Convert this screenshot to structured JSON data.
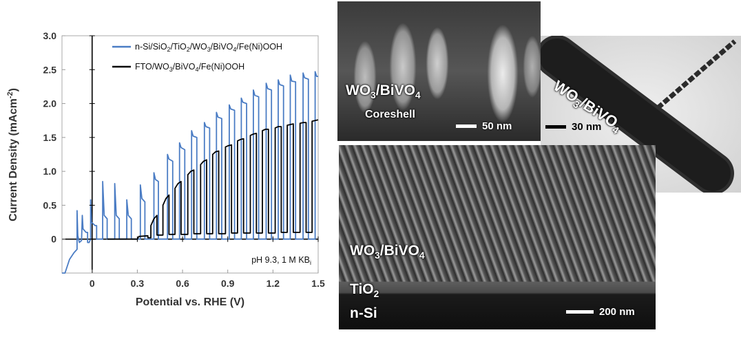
{
  "chart_data": {
    "type": "line",
    "xlabel": "Potential vs. RHE (V)",
    "ylabel_main": "Current Density (mAcm",
    "ylabel_sup": "-2",
    "ylabel_close": ")",
    "xlim": [
      -0.2,
      1.5
    ],
    "ylim": [
      -0.5,
      3.0
    ],
    "x_ticks": [
      {
        "v": 0,
        "label": "0"
      },
      {
        "v": 0.3,
        "label": "0.3"
      },
      {
        "v": 0.6,
        "label": "0.6"
      },
      {
        "v": 0.9,
        "label": "0.9"
      },
      {
        "v": 1.2,
        "label": "1.2"
      },
      {
        "v": 1.5,
        "label": "1.5"
      }
    ],
    "y_ticks": [
      {
        "v": 0,
        "label": "0"
      },
      {
        "v": 0.5,
        "label": "0.5"
      },
      {
        "v": 1.0,
        "label": "1.0"
      },
      {
        "v": 1.5,
        "label": "1.5"
      },
      {
        "v": 2.0,
        "label": "2.0"
      },
      {
        "v": 2.5,
        "label": "2.5"
      },
      {
        "v": 3.0,
        "label": "3.0"
      }
    ],
    "legend": [
      {
        "parts": [
          [
            "n-Si/SiO",
            ""
          ],
          [
            "2",
            "sub"
          ],
          [
            "/TiO",
            ""
          ],
          [
            "2",
            "sub"
          ],
          [
            "/WO",
            ""
          ],
          [
            "3",
            "sub"
          ],
          [
            "/BiVO",
            ""
          ],
          [
            "4",
            "sub"
          ],
          [
            "/Fe(Ni)OOH",
            ""
          ]
        ],
        "color": "#4a7cc4"
      },
      {
        "parts": [
          [
            "FTO/WO",
            ""
          ],
          [
            "3",
            "sub"
          ],
          [
            "/BiVO",
            ""
          ],
          [
            "4",
            "sub"
          ],
          [
            "/Fe(Ni)OOH",
            ""
          ]
        ],
        "color": "#000000"
      }
    ],
    "annotation": {
      "parts": [
        [
          "pH 9.3, 1 M KB",
          ""
        ],
        [
          "i",
          "sub"
        ]
      ]
    },
    "series": [
      {
        "color": "#4a7cc4",
        "points": [
          [
            -0.2,
            -0.55
          ],
          [
            -0.18,
            -0.5
          ],
          [
            -0.15,
            -0.3
          ],
          [
            -0.12,
            -0.2
          ],
          [
            -0.1,
            -0.15
          ],
          [
            -0.1,
            0.42
          ],
          [
            -0.095,
            0.05
          ],
          [
            -0.085,
            -0.05
          ],
          [
            -0.07,
            -0.02
          ],
          [
            -0.065,
            0.35
          ],
          [
            -0.06,
            0.15
          ],
          [
            -0.04,
            0.1
          ],
          [
            -0.03,
            0.1
          ],
          [
            -0.03,
            -0.05
          ],
          [
            -0.02,
            -0.05
          ],
          [
            -0.01,
            0.0
          ],
          [
            -0.01,
            0.58
          ],
          [
            -0.005,
            0.25
          ],
          [
            0.02,
            0.2
          ],
          [
            0.03,
            0.2
          ],
          [
            0.03,
            0.0
          ],
          [
            0.07,
            0.0
          ],
          [
            0.07,
            0.85
          ],
          [
            0.08,
            0.35
          ],
          [
            0.1,
            0.3
          ],
          [
            0.1,
            0.0
          ],
          [
            0.15,
            0.0
          ],
          [
            0.15,
            0.82
          ],
          [
            0.16,
            0.35
          ],
          [
            0.18,
            0.3
          ],
          [
            0.18,
            0.0
          ],
          [
            0.23,
            0.0
          ],
          [
            0.23,
            0.58
          ],
          [
            0.24,
            0.35
          ],
          [
            0.26,
            0.3
          ],
          [
            0.26,
            0.0
          ],
          [
            0.32,
            0.0
          ],
          [
            0.32,
            0.8
          ],
          [
            0.33,
            0.6
          ],
          [
            0.35,
            0.55
          ],
          [
            0.35,
            0.0
          ],
          [
            0.41,
            0.0
          ],
          [
            0.41,
            0.98
          ],
          [
            0.42,
            0.88
          ],
          [
            0.44,
            0.85
          ],
          [
            0.44,
            0.0
          ],
          [
            0.5,
            0.0
          ],
          [
            0.5,
            1.25
          ],
          [
            0.51,
            1.18
          ],
          [
            0.535,
            1.15
          ],
          [
            0.535,
            0.0
          ],
          [
            0.58,
            0.0
          ],
          [
            0.58,
            1.42
          ],
          [
            0.59,
            1.35
          ],
          [
            0.615,
            1.32
          ],
          [
            0.615,
            0.0
          ],
          [
            0.66,
            0.0
          ],
          [
            0.66,
            1.6
          ],
          [
            0.67,
            1.52
          ],
          [
            0.695,
            1.5
          ],
          [
            0.695,
            0.0
          ],
          [
            0.745,
            0.0
          ],
          [
            0.745,
            1.72
          ],
          [
            0.755,
            1.66
          ],
          [
            0.78,
            1.64
          ],
          [
            0.78,
            0.0
          ],
          [
            0.825,
            0.0
          ],
          [
            0.825,
            1.87
          ],
          [
            0.835,
            1.8
          ],
          [
            0.86,
            1.78
          ],
          [
            0.86,
            0.0
          ],
          [
            0.91,
            0.0
          ],
          [
            0.91,
            1.98
          ],
          [
            0.92,
            1.92
          ],
          [
            0.945,
            1.9
          ],
          [
            0.945,
            0.0
          ],
          [
            0.99,
            0.0
          ],
          [
            0.99,
            2.08
          ],
          [
            1.0,
            2.02
          ],
          [
            1.025,
            2.0
          ],
          [
            1.025,
            0.0
          ],
          [
            1.07,
            0.0
          ],
          [
            1.07,
            2.2
          ],
          [
            1.08,
            2.12
          ],
          [
            1.105,
            2.1
          ],
          [
            1.105,
            0.0
          ],
          [
            1.155,
            0.0
          ],
          [
            1.155,
            2.3
          ],
          [
            1.165,
            2.22
          ],
          [
            1.19,
            2.2
          ],
          [
            1.19,
            0.0
          ],
          [
            1.235,
            0.0
          ],
          [
            1.235,
            2.35
          ],
          [
            1.245,
            2.28
          ],
          [
            1.27,
            2.26
          ],
          [
            1.27,
            0.0
          ],
          [
            1.315,
            0.0
          ],
          [
            1.315,
            2.42
          ],
          [
            1.325,
            2.33
          ],
          [
            1.35,
            2.32
          ],
          [
            1.35,
            0.0
          ],
          [
            1.4,
            0.0
          ],
          [
            1.4,
            2.45
          ],
          [
            1.41,
            2.38
          ],
          [
            1.435,
            2.36
          ],
          [
            1.435,
            0.0
          ],
          [
            1.48,
            0.0
          ],
          [
            1.48,
            2.47
          ],
          [
            1.49,
            2.4
          ],
          [
            1.5,
            2.4
          ]
        ]
      },
      {
        "color": "#000000",
        "points": [
          [
            0.1,
            0.0
          ],
          [
            0.3,
            0.0
          ],
          [
            0.31,
            0.04
          ],
          [
            0.37,
            0.05
          ],
          [
            0.37,
            0.02
          ],
          [
            0.39,
            0.02
          ],
          [
            0.39,
            0.2
          ],
          [
            0.41,
            0.3
          ],
          [
            0.43,
            0.35
          ],
          [
            0.43,
            0.06
          ],
          [
            0.47,
            0.06
          ],
          [
            0.47,
            0.5
          ],
          [
            0.49,
            0.6
          ],
          [
            0.51,
            0.65
          ],
          [
            0.51,
            0.07
          ],
          [
            0.55,
            0.07
          ],
          [
            0.55,
            0.75
          ],
          [
            0.57,
            0.82
          ],
          [
            0.59,
            0.85
          ],
          [
            0.59,
            0.07
          ],
          [
            0.635,
            0.07
          ],
          [
            0.635,
            0.95
          ],
          [
            0.655,
            1.0
          ],
          [
            0.675,
            1.02
          ],
          [
            0.675,
            0.08
          ],
          [
            0.72,
            0.08
          ],
          [
            0.72,
            1.1
          ],
          [
            0.74,
            1.15
          ],
          [
            0.76,
            1.17
          ],
          [
            0.76,
            0.08
          ],
          [
            0.8,
            0.08
          ],
          [
            0.8,
            1.25
          ],
          [
            0.82,
            1.29
          ],
          [
            0.84,
            1.3
          ],
          [
            0.84,
            0.08
          ],
          [
            0.885,
            0.08
          ],
          [
            0.885,
            1.36
          ],
          [
            0.905,
            1.38
          ],
          [
            0.925,
            1.39
          ],
          [
            0.925,
            0.09
          ],
          [
            0.965,
            0.09
          ],
          [
            0.965,
            1.45
          ],
          [
            0.985,
            1.47
          ],
          [
            1.005,
            1.48
          ],
          [
            1.005,
            0.09
          ],
          [
            1.05,
            0.09
          ],
          [
            1.05,
            1.53
          ],
          [
            1.07,
            1.55
          ],
          [
            1.09,
            1.56
          ],
          [
            1.09,
            0.09
          ],
          [
            1.13,
            0.09
          ],
          [
            1.13,
            1.6
          ],
          [
            1.15,
            1.62
          ],
          [
            1.17,
            1.62
          ],
          [
            1.17,
            0.09
          ],
          [
            1.215,
            0.09
          ],
          [
            1.215,
            1.64
          ],
          [
            1.235,
            1.66
          ],
          [
            1.255,
            1.66
          ],
          [
            1.255,
            0.1
          ],
          [
            1.295,
            0.1
          ],
          [
            1.295,
            1.68
          ],
          [
            1.315,
            1.69
          ],
          [
            1.335,
            1.7
          ],
          [
            1.335,
            0.1
          ],
          [
            1.38,
            0.1
          ],
          [
            1.38,
            1.71
          ],
          [
            1.4,
            1.72
          ],
          [
            1.42,
            1.72
          ],
          [
            1.42,
            0.1
          ],
          [
            1.46,
            0.1
          ],
          [
            1.46,
            1.74
          ],
          [
            1.48,
            1.75
          ],
          [
            1.5,
            1.76
          ]
        ]
      }
    ]
  },
  "images": {
    "sem_top": {
      "label_main": [
        [
          "WO",
          ""
        ],
        [
          "3",
          "sub"
        ],
        [
          "/BiVO",
          ""
        ],
        [
          "4",
          "sub"
        ]
      ],
      "label_sub": "Coreshell",
      "scale": "50 nm"
    },
    "tem": {
      "label": [
        [
          "WO",
          ""
        ],
        [
          "3",
          "sub"
        ],
        [
          "/BiVO",
          ""
        ],
        [
          "4",
          "sub"
        ]
      ],
      "scale": "30 nm"
    },
    "sem_cross": {
      "label_film": [
        [
          "WO",
          ""
        ],
        [
          "3",
          "sub"
        ],
        [
          "/BiVO",
          ""
        ],
        [
          "4",
          "sub"
        ]
      ],
      "label_tio2": [
        [
          "TiO",
          ""
        ],
        [
          "2",
          "sub"
        ]
      ],
      "label_si": "n-Si",
      "scale": "200 nm"
    }
  }
}
